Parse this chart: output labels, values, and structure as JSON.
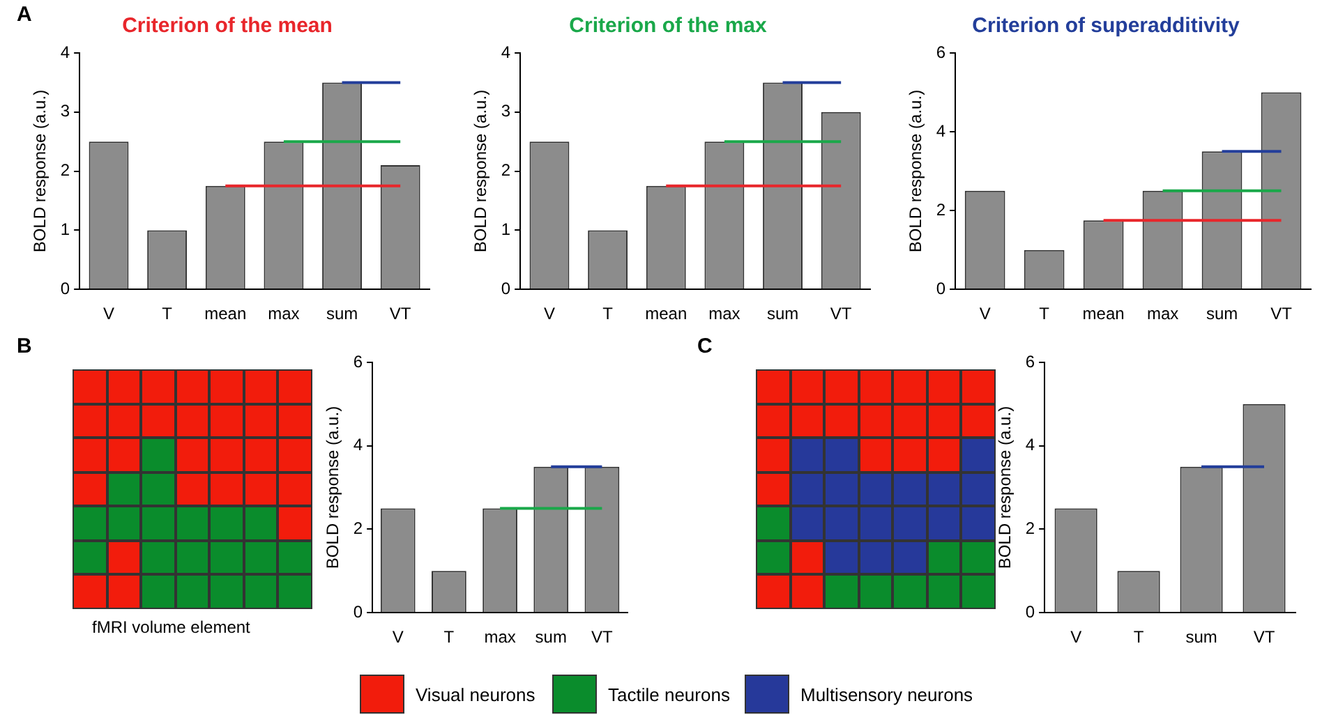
{
  "chart_data": [
    {
      "type": "bar",
      "title": "Criterion of the mean",
      "ylabel": "BOLD response (a.u.)",
      "categories": [
        "V",
        "T",
        "mean",
        "max",
        "sum",
        "VT"
      ],
      "ylim": [
        0,
        4
      ],
      "yticks": [
        0,
        1,
        2,
        3,
        4
      ],
      "grid": false,
      "legend": false,
      "annotations": [
        "A"
      ],
      "series": [
        {
          "type": "bar",
          "color": "#8c8c8c",
          "values": [
            2.5,
            1,
            1.75,
            2.5,
            3.5,
            2.1
          ]
        },
        {
          "type": "line",
          "color": "#e8262b",
          "values": [
            null,
            null,
            1.75,
            1.75,
            1.75,
            1.75
          ]
        },
        {
          "type": "line",
          "color": "#1aa84a",
          "values": [
            null,
            null,
            null,
            2.5,
            2.5,
            2.5
          ]
        },
        {
          "type": "line",
          "color": "#233e9a",
          "values": [
            null,
            null,
            null,
            null,
            3.5,
            3.5
          ]
        }
      ]
    },
    {
      "type": "bar",
      "title": "Criterion of the max",
      "ylabel": "BOLD response (a.u.)",
      "categories": [
        "V",
        "T",
        "mean",
        "max",
        "sum",
        "VT"
      ],
      "ylim": [
        0,
        4
      ],
      "yticks": [
        0,
        1,
        2,
        3,
        4
      ],
      "grid": false,
      "legend": false,
      "series": [
        {
          "type": "bar",
          "color": "#8c8c8c",
          "values": [
            2.5,
            1,
            1.75,
            2.5,
            3.5,
            3.0
          ]
        },
        {
          "type": "line",
          "color": "#e8262b",
          "values": [
            null,
            null,
            1.75,
            1.75,
            1.75,
            1.75
          ]
        },
        {
          "type": "line",
          "color": "#1aa84a",
          "values": [
            null,
            null,
            null,
            2.5,
            2.5,
            2.5
          ]
        },
        {
          "type": "line",
          "color": "#233e9a",
          "values": [
            null,
            null,
            null,
            null,
            3.5,
            3.5
          ]
        }
      ]
    },
    {
      "type": "bar",
      "title": "Criterion of superadditivity",
      "ylabel": "BOLD response (a.u.)",
      "categories": [
        "V",
        "T",
        "mean",
        "max",
        "sum",
        "VT"
      ],
      "ylim": [
        0,
        6
      ],
      "yticks": [
        0,
        2,
        4,
        6
      ],
      "grid": false,
      "legend": false,
      "series": [
        {
          "type": "bar",
          "color": "#8c8c8c",
          "values": [
            2.5,
            1,
            1.75,
            2.5,
            3.5,
            5.0
          ]
        },
        {
          "type": "line",
          "color": "#e8262b",
          "values": [
            null,
            null,
            1.75,
            1.75,
            1.75,
            1.75
          ]
        },
        {
          "type": "line",
          "color": "#1aa84a",
          "values": [
            null,
            null,
            null,
            2.5,
            2.5,
            2.5
          ]
        },
        {
          "type": "line",
          "color": "#233e9a",
          "values": [
            null,
            null,
            null,
            null,
            3.5,
            3.5
          ]
        }
      ]
    },
    {
      "type": "bar",
      "ylabel": "BOLD response (a.u.)",
      "categories": [
        "V",
        "T",
        "max",
        "sum",
        "VT"
      ],
      "ylim": [
        0,
        6
      ],
      "yticks": [
        0,
        2,
        4,
        6
      ],
      "grid": false,
      "legend": false,
      "annotations": [
        "B",
        "fMRI volume element"
      ],
      "series": [
        {
          "type": "bar",
          "color": "#8c8c8c",
          "values": [
            2.5,
            1,
            2.5,
            3.5,
            3.5
          ]
        },
        {
          "type": "line",
          "color": "#1aa84a",
          "values": [
            null,
            null,
            2.5,
            2.5,
            2.5
          ]
        },
        {
          "type": "line",
          "color": "#233e9a",
          "values": [
            null,
            null,
            null,
            3.5,
            3.5
          ]
        }
      ]
    },
    {
      "type": "bar",
      "ylabel": "BOLD response (a.u.)",
      "categories": [
        "V",
        "T",
        "sum",
        "VT"
      ],
      "ylim": [
        0,
        6
      ],
      "yticks": [
        0,
        2,
        4,
        6
      ],
      "grid": false,
      "legend": false,
      "annotations": [
        "C"
      ],
      "series": [
        {
          "type": "bar",
          "color": "#8c8c8c",
          "values": [
            2.5,
            1,
            3.5,
            5.0
          ]
        },
        {
          "type": "line",
          "color": "#233e9a",
          "values": [
            null,
            null,
            3.5,
            3.5
          ]
        }
      ]
    },
    {
      "type": "other",
      "annotations": [
        "Visual neurons",
        "Tactile neurons",
        "Multisensory neurons"
      ]
    }
  ]
}
